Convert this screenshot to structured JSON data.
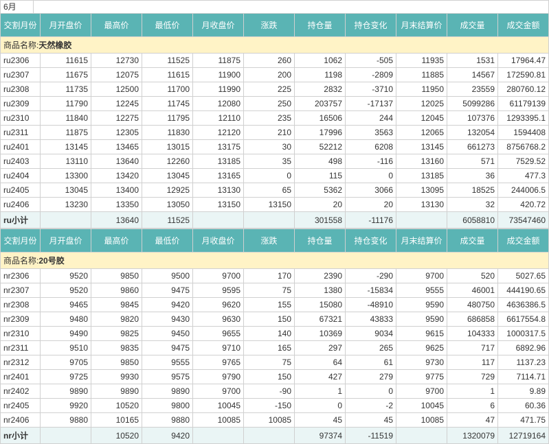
{
  "top_label": "6月",
  "columns": [
    "交割月份",
    "月开盘价",
    "最高价",
    "最低价",
    "月收盘价",
    "涨跌",
    "持仓量",
    "持仓变化",
    "月末结算价",
    "成交量",
    "成交金额"
  ],
  "groups": [
    {
      "title_prefix": "商品名称:",
      "title_name": "天然橡胶",
      "rows": [
        [
          "ru2306",
          "11615",
          "12730",
          "11525",
          "11875",
          "260",
          "1062",
          "-505",
          "11935",
          "1531",
          "17964.47"
        ],
        [
          "ru2307",
          "11675",
          "12075",
          "11615",
          "11900",
          "200",
          "1198",
          "-2809",
          "11885",
          "14567",
          "172590.81"
        ],
        [
          "ru2308",
          "11735",
          "12500",
          "11700",
          "11990",
          "225",
          "2832",
          "-3710",
          "11950",
          "23559",
          "280760.12"
        ],
        [
          "ru2309",
          "11790",
          "12245",
          "11745",
          "12080",
          "250",
          "203757",
          "-17137",
          "12025",
          "5099286",
          "61179139"
        ],
        [
          "ru2310",
          "11840",
          "12275",
          "11795",
          "12110",
          "235",
          "16506",
          "244",
          "12045",
          "107376",
          "1293395.1"
        ],
        [
          "ru2311",
          "11875",
          "12305",
          "11830",
          "12120",
          "210",
          "17996",
          "3563",
          "12065",
          "132054",
          "1594408"
        ],
        [
          "ru2401",
          "13145",
          "13465",
          "13015",
          "13175",
          "30",
          "52212",
          "6208",
          "13145",
          "661273",
          "8756768.2"
        ],
        [
          "ru2403",
          "13110",
          "13640",
          "12260",
          "13185",
          "35",
          "498",
          "-116",
          "13160",
          "571",
          "7529.52"
        ],
        [
          "ru2404",
          "13300",
          "13420",
          "13045",
          "13165",
          "0",
          "115",
          "0",
          "13185",
          "36",
          "477.3"
        ],
        [
          "ru2405",
          "13045",
          "13400",
          "12925",
          "13130",
          "65",
          "5362",
          "3066",
          "13095",
          "18525",
          "244006.5"
        ],
        [
          "ru2406",
          "13230",
          "13350",
          "13050",
          "13150",
          "13150",
          "20",
          "20",
          "13130",
          "32",
          "420.72"
        ]
      ],
      "subtotal": [
        "ru小计",
        "",
        "13640",
        "11525",
        "",
        "",
        "301558",
        "-11176",
        "",
        "6058810",
        "73547460"
      ]
    },
    {
      "title_prefix": "商品名称:",
      "title_name": "20号胶",
      "rows": [
        [
          "nr2306",
          "9520",
          "9850",
          "9500",
          "9700",
          "170",
          "2390",
          "-290",
          "9700",
          "520",
          "5027.65"
        ],
        [
          "nr2307",
          "9520",
          "9860",
          "9475",
          "9595",
          "75",
          "1380",
          "-15834",
          "9555",
          "46001",
          "444190.65"
        ],
        [
          "nr2308",
          "9465",
          "9845",
          "9420",
          "9620",
          "155",
          "15080",
          "-48910",
          "9590",
          "480750",
          "4636386.5"
        ],
        [
          "nr2309",
          "9480",
          "9820",
          "9430",
          "9630",
          "150",
          "67321",
          "43833",
          "9590",
          "686858",
          "6617554.8"
        ],
        [
          "nr2310",
          "9490",
          "9825",
          "9450",
          "9655",
          "140",
          "10369",
          "9034",
          "9615",
          "104333",
          "1000317.5"
        ],
        [
          "nr2311",
          "9510",
          "9835",
          "9475",
          "9710",
          "165",
          "297",
          "265",
          "9625",
          "717",
          "6892.96"
        ],
        [
          "nr2312",
          "9705",
          "9850",
          "9555",
          "9765",
          "75",
          "64",
          "61",
          "9730",
          "117",
          "1137.23"
        ],
        [
          "nr2401",
          "9725",
          "9930",
          "9575",
          "9790",
          "150",
          "427",
          "279",
          "9775",
          "729",
          "7114.71"
        ],
        [
          "nr2402",
          "9890",
          "9890",
          "9890",
          "9700",
          "-90",
          "1",
          "0",
          "9700",
          "1",
          "9.89"
        ],
        [
          "nr2405",
          "9920",
          "10520",
          "9800",
          "10045",
          "-150",
          "0",
          "-2",
          "10045",
          "6",
          "60.36"
        ],
        [
          "nr2406",
          "9880",
          "10165",
          "9880",
          "10085",
          "10085",
          "45",
          "45",
          "10085",
          "47",
          "471.75"
        ]
      ],
      "subtotal": [
        "nr小计",
        "",
        "10520",
        "9420",
        "",
        "",
        "97374",
        "-11519",
        "",
        "1320079",
        "12719164"
      ]
    }
  ],
  "style": {
    "header_bg": "#5ab4b4",
    "header_fg": "#ffffff",
    "section_bg": "#fff3c6",
    "subtotal_bg": "#eaf5f5",
    "border_color": "#d0d0d0",
    "font_size": 12
  }
}
